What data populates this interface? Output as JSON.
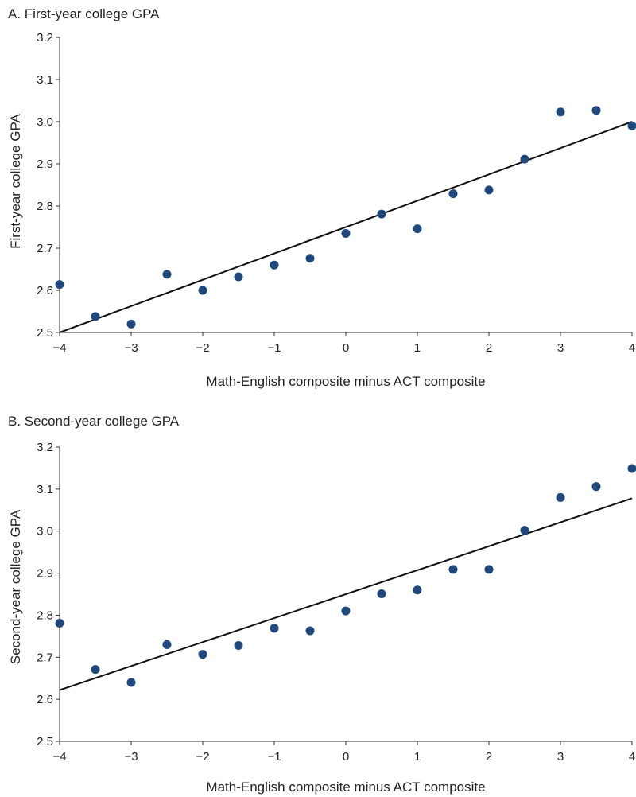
{
  "style": {
    "point_color": "#1f497d",
    "line_color": "#111111",
    "axis_color": "#333333"
  },
  "chart_data": [
    {
      "type": "scatter",
      "title": "A. First-year college GPA",
      "xlabel": "Math-English composite minus ACT composite",
      "ylabel": "First-year college GPA",
      "xlim": [
        -4,
        4
      ],
      "ylim": [
        2.5,
        3.2
      ],
      "xticks": [
        -4,
        -3,
        -2,
        -1,
        0,
        1,
        2,
        3,
        4
      ],
      "xtick_labels": [
        "−4",
        "−3",
        "−2",
        "−1",
        "0",
        "1",
        "2",
        "3",
        "4"
      ],
      "yticks": [
        2.5,
        2.6,
        2.7,
        2.8,
        2.9,
        3.0,
        3.1,
        3.2
      ],
      "ytick_labels": [
        "2.5",
        "2.6",
        "2.7",
        "2.8",
        "2.9",
        "3.0",
        "3.1",
        "3.2"
      ],
      "grid": false,
      "x": [
        -4,
        -3.5,
        -3,
        -2.5,
        -2,
        -1.5,
        -1,
        -0.5,
        0,
        0.5,
        1,
        1.5,
        2,
        2.5,
        3,
        3.5,
        4
      ],
      "y": [
        2.614,
        2.538,
        2.52,
        2.638,
        2.6,
        2.632,
        2.66,
        2.676,
        2.735,
        2.781,
        2.746,
        2.829,
        2.838,
        2.911,
        3.023,
        3.027,
        2.99
      ],
      "fit_line": {
        "x": [
          -4,
          4
        ],
        "y": [
          2.5,
          3.0
        ]
      }
    },
    {
      "type": "scatter",
      "title": "B. Second-year college GPA",
      "xlabel": "Math-English composite minus ACT composite",
      "ylabel": "Second-year college GPA",
      "xlim": [
        -4,
        4
      ],
      "ylim": [
        2.5,
        3.2
      ],
      "xticks": [
        -4,
        -3,
        -2,
        -1,
        0,
        1,
        2,
        3,
        4
      ],
      "xtick_labels": [
        "−4",
        "−3",
        "−2",
        "−1",
        "0",
        "1",
        "2",
        "3",
        "4"
      ],
      "yticks": [
        2.5,
        2.6,
        2.7,
        2.8,
        2.9,
        3.0,
        3.1,
        3.2
      ],
      "ytick_labels": [
        "2.5",
        "2.6",
        "2.7",
        "2.8",
        "2.9",
        "3.0",
        "3.1",
        "3.2"
      ],
      "grid": false,
      "x": [
        -4,
        -3.5,
        -3,
        -2.5,
        -2,
        -1.5,
        -1,
        -0.5,
        0,
        0.5,
        1,
        1.5,
        2,
        2.5,
        3,
        3.5,
        4
      ],
      "y": [
        2.781,
        2.671,
        2.64,
        2.73,
        2.707,
        2.728,
        2.769,
        2.763,
        2.81,
        2.851,
        2.86,
        2.909,
        2.909,
        3.002,
        3.08,
        3.106,
        3.149
      ],
      "fit_line": {
        "x": [
          -4,
          4
        ],
        "y": [
          2.622,
          3.078
        ]
      }
    }
  ]
}
